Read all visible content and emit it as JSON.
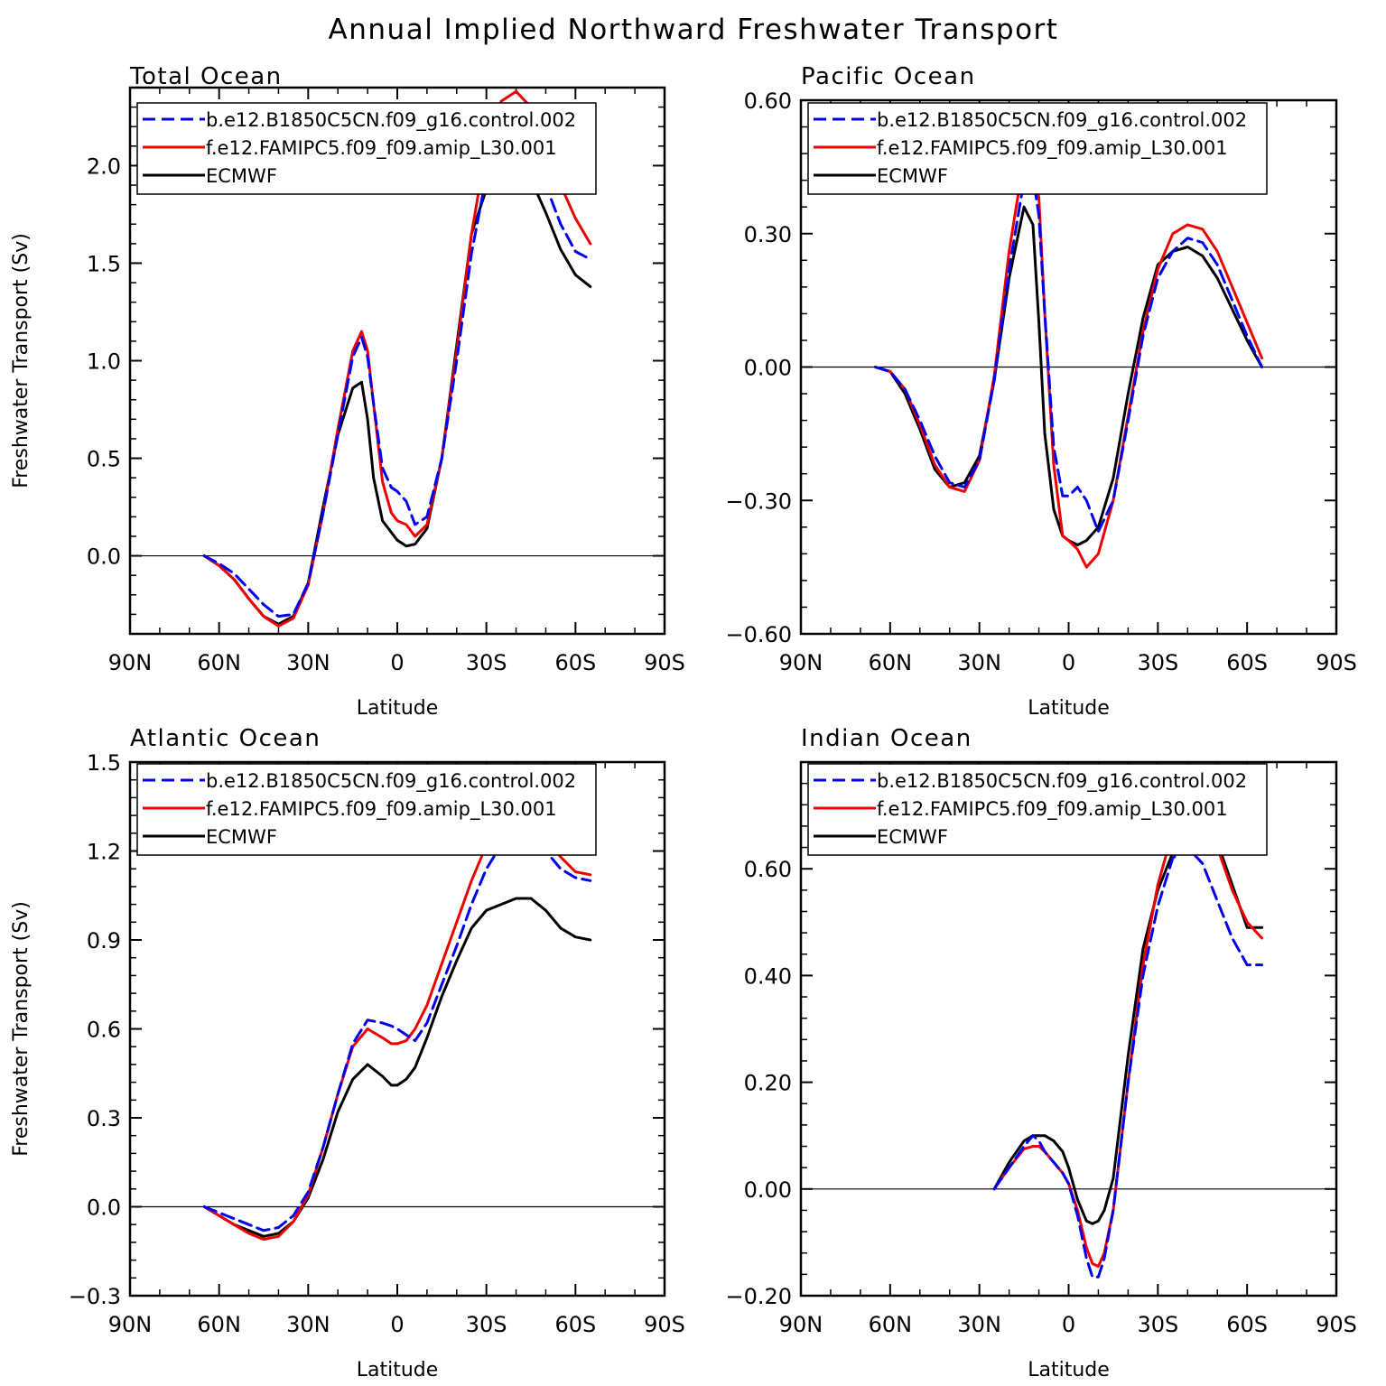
{
  "figure": {
    "title": "Annual Implied Northward Freshwater Transport"
  },
  "legend_entries": [
    "b.e12.B1850C5CN.f09_g16.control.002",
    "f.e12.FAMIPC5.f09_f09.amip_L30.001",
    "ECMWF"
  ],
  "colors": {
    "control": "#0000ee",
    "amip": "#ee0000",
    "ecmwf": "#000000"
  },
  "chart_data": [
    {
      "type": "line",
      "title": "Total Ocean",
      "xlabel": "Latitude",
      "ylabel": "Freshwater Transport (Sv)",
      "xlim": [
        90,
        -90
      ],
      "ylim": [
        -0.4,
        2.4
      ],
      "x_ticks": [
        90,
        60,
        30,
        0,
        -30,
        -60,
        -90
      ],
      "x_tick_labels": [
        "90N",
        "60N",
        "30N",
        "0",
        "30S",
        "60S",
        "90S"
      ],
      "y_ticks": [
        0.0,
        0.5,
        1.0,
        1.5,
        2.0
      ],
      "y_tick_labels": [
        "0.0",
        "0.5",
        "1.0",
        "1.5",
        "2.0"
      ],
      "legend_position": "top-left",
      "series": [
        {
          "name": "b.e12.B1850C5CN.f09_g16.control.002",
          "style": "dashed",
          "color": "#0000ee",
          "x": [
            65,
            60,
            55,
            50,
            45,
            40,
            35,
            30,
            25,
            20,
            15,
            12,
            10,
            8,
            5,
            2,
            0,
            -3,
            -6,
            -10,
            -15,
            -20,
            -25,
            -30,
            -35,
            -40,
            -45,
            -50,
            -55,
            -60,
            -65
          ],
          "y": [
            0.0,
            -0.04,
            -0.09,
            -0.17,
            -0.25,
            -0.31,
            -0.3,
            -0.14,
            0.22,
            0.62,
            1.02,
            1.12,
            1.02,
            0.78,
            0.45,
            0.35,
            0.33,
            0.28,
            0.16,
            0.2,
            0.5,
            1.0,
            1.55,
            1.95,
            2.15,
            2.2,
            2.1,
            1.9,
            1.7,
            1.56,
            1.52
          ]
        },
        {
          "name": "f.e12.FAMIPC5.f09_f09.amip_L30.001",
          "style": "solid",
          "color": "#ee0000",
          "x": [
            65,
            60,
            55,
            50,
            45,
            40,
            35,
            30,
            25,
            20,
            15,
            12,
            10,
            8,
            5,
            2,
            0,
            -3,
            -6,
            -10,
            -15,
            -20,
            -25,
            -30,
            -35,
            -40,
            -45,
            -50,
            -55,
            -60,
            -65
          ],
          "y": [
            0.0,
            -0.05,
            -0.12,
            -0.22,
            -0.31,
            -0.36,
            -0.32,
            -0.15,
            0.22,
            0.65,
            1.05,
            1.15,
            1.05,
            0.78,
            0.38,
            0.22,
            0.18,
            0.16,
            0.1,
            0.16,
            0.5,
            1.05,
            1.65,
            2.1,
            2.33,
            2.38,
            2.3,
            2.1,
            1.9,
            1.73,
            1.6
          ]
        },
        {
          "name": "ECMWF",
          "style": "solid",
          "color": "#000000",
          "x": [
            65,
            60,
            55,
            50,
            45,
            40,
            35,
            30,
            25,
            20,
            15,
            12,
            10,
            8,
            5,
            2,
            0,
            -3,
            -6,
            -10,
            -15,
            -20,
            -25,
            -30,
            -35,
            -40,
            -45,
            -50,
            -55,
            -60,
            -65
          ],
          "y": [
            0.0,
            -0.05,
            -0.12,
            -0.22,
            -0.31,
            -0.35,
            -0.31,
            -0.14,
            0.25,
            0.62,
            0.86,
            0.89,
            0.7,
            0.4,
            0.18,
            0.12,
            0.08,
            0.05,
            0.06,
            0.14,
            0.5,
            1.08,
            1.65,
            1.88,
            1.98,
            2.01,
            1.93,
            1.76,
            1.57,
            1.44,
            1.38
          ]
        }
      ]
    },
    {
      "type": "line",
      "title": "Pacific Ocean",
      "xlabel": "Latitude",
      "ylabel": "",
      "xlim": [
        90,
        -90
      ],
      "ylim": [
        -0.6,
        0.6
      ],
      "x_ticks": [
        90,
        60,
        30,
        0,
        -30,
        -60,
        -90
      ],
      "x_tick_labels": [
        "90N",
        "60N",
        "30N",
        "0",
        "30S",
        "60S",
        "90S"
      ],
      "y_ticks": [
        -0.6,
        -0.3,
        0.0,
        0.3,
        0.6
      ],
      "y_tick_labels": [
        "−0.60",
        "−0.30",
        "0.00",
        "0.30",
        "0.60"
      ],
      "legend_position": "top-left",
      "series": [
        {
          "name": "b.e12.B1850C5CN.f09_g16.control.002",
          "style": "dashed",
          "color": "#0000ee",
          "x": [
            65,
            60,
            55,
            50,
            45,
            40,
            35,
            30,
            25,
            20,
            15,
            12,
            10,
            8,
            5,
            2,
            0,
            -3,
            -6,
            -10,
            -15,
            -20,
            -25,
            -30,
            -35,
            -40,
            -45,
            -50,
            -55,
            -60,
            -65
          ],
          "y": [
            0.0,
            -0.01,
            -0.05,
            -0.12,
            -0.2,
            -0.26,
            -0.27,
            -0.21,
            -0.03,
            0.22,
            0.42,
            0.43,
            0.34,
            0.12,
            -0.18,
            -0.29,
            -0.29,
            -0.27,
            -0.3,
            -0.37,
            -0.3,
            -0.12,
            0.07,
            0.2,
            0.26,
            0.29,
            0.28,
            0.23,
            0.15,
            0.07,
            0.0
          ]
        },
        {
          "name": "f.e12.FAMIPC5.f09_f09.amip_L30.001",
          "style": "solid",
          "color": "#ee0000",
          "x": [
            65,
            60,
            55,
            50,
            45,
            40,
            35,
            30,
            25,
            20,
            15,
            12,
            10,
            8,
            5,
            2,
            0,
            -3,
            -6,
            -10,
            -15,
            -20,
            -25,
            -30,
            -35,
            -40,
            -45,
            -50,
            -55,
            -60,
            -65
          ],
          "y": [
            0.0,
            -0.01,
            -0.05,
            -0.13,
            -0.22,
            -0.27,
            -0.28,
            -0.21,
            -0.02,
            0.26,
            0.47,
            0.48,
            0.38,
            0.12,
            -0.22,
            -0.38,
            -0.39,
            -0.41,
            -0.45,
            -0.42,
            -0.3,
            -0.11,
            0.08,
            0.22,
            0.3,
            0.32,
            0.31,
            0.26,
            0.18,
            0.1,
            0.02
          ]
        },
        {
          "name": "ECMWF",
          "style": "solid",
          "color": "#000000",
          "x": [
            65,
            60,
            55,
            50,
            45,
            40,
            35,
            30,
            25,
            20,
            15,
            12,
            10,
            8,
            5,
            2,
            0,
            -3,
            -6,
            -10,
            -15,
            -20,
            -25,
            -30,
            -35,
            -40,
            -45,
            -50,
            -55,
            -60,
            -65
          ],
          "y": [
            0.0,
            -0.01,
            -0.06,
            -0.14,
            -0.23,
            -0.27,
            -0.26,
            -0.2,
            -0.03,
            0.2,
            0.36,
            0.32,
            0.1,
            -0.15,
            -0.32,
            -0.38,
            -0.39,
            -0.4,
            -0.39,
            -0.36,
            -0.25,
            -0.06,
            0.11,
            0.23,
            0.26,
            0.27,
            0.25,
            0.2,
            0.13,
            0.06,
            0.0
          ]
        }
      ]
    },
    {
      "type": "line",
      "title": "Atlantic Ocean",
      "xlabel": "Latitude",
      "ylabel": "Freshwater Transport (Sv)",
      "xlim": [
        90,
        -90
      ],
      "ylim": [
        -0.3,
        1.5
      ],
      "x_ticks": [
        90,
        60,
        30,
        0,
        -30,
        -60,
        -90
      ],
      "x_tick_labels": [
        "90N",
        "60N",
        "30N",
        "0",
        "30S",
        "60S",
        "90S"
      ],
      "y_ticks": [
        -0.3,
        0.0,
        0.3,
        0.6,
        0.9,
        1.2,
        1.5
      ],
      "y_tick_labels": [
        "−0.3",
        "0.0",
        "0.3",
        "0.6",
        "0.9",
        "1.2",
        "1.5"
      ],
      "legend_position": "top-left",
      "series": [
        {
          "name": "b.e12.B1850C5CN.f09_g16.control.002",
          "style": "dashed",
          "color": "#0000ee",
          "x": [
            65,
            60,
            55,
            50,
            45,
            40,
            35,
            30,
            25,
            20,
            15,
            10,
            5,
            2,
            0,
            -3,
            -6,
            -10,
            -15,
            -20,
            -25,
            -30,
            -35,
            -40,
            -45,
            -50,
            -55,
            -60,
            -65
          ],
          "y": [
            0.0,
            -0.02,
            -0.04,
            -0.06,
            -0.08,
            -0.07,
            -0.03,
            0.05,
            0.2,
            0.38,
            0.55,
            0.63,
            0.62,
            0.61,
            0.6,
            0.58,
            0.56,
            0.62,
            0.75,
            0.88,
            1.02,
            1.14,
            1.22,
            1.27,
            1.26,
            1.2,
            1.14,
            1.11,
            1.1
          ]
        },
        {
          "name": "f.e12.FAMIPC5.f09_f09.amip_L30.001",
          "style": "solid",
          "color": "#ee0000",
          "x": [
            65,
            60,
            55,
            50,
            45,
            40,
            35,
            30,
            25,
            20,
            15,
            10,
            5,
            2,
            0,
            -3,
            -6,
            -10,
            -15,
            -20,
            -25,
            -30,
            -35,
            -40,
            -45,
            -50,
            -55,
            -60,
            -65
          ],
          "y": [
            0.0,
            -0.03,
            -0.06,
            -0.09,
            -0.11,
            -0.1,
            -0.05,
            0.04,
            0.2,
            0.38,
            0.54,
            0.6,
            0.57,
            0.55,
            0.55,
            0.56,
            0.6,
            0.68,
            0.82,
            0.96,
            1.1,
            1.22,
            1.29,
            1.33,
            1.32,
            1.25,
            1.18,
            1.13,
            1.12
          ]
        },
        {
          "name": "ECMWF",
          "style": "solid",
          "color": "#000000",
          "x": [
            65,
            60,
            55,
            50,
            45,
            40,
            35,
            30,
            25,
            20,
            15,
            10,
            5,
            2,
            0,
            -3,
            -6,
            -10,
            -15,
            -20,
            -25,
            -30,
            -35,
            -40,
            -45,
            -50,
            -55,
            -60,
            -65
          ],
          "y": [
            0.0,
            -0.03,
            -0.06,
            -0.08,
            -0.1,
            -0.09,
            -0.05,
            0.03,
            0.16,
            0.32,
            0.43,
            0.48,
            0.44,
            0.41,
            0.41,
            0.43,
            0.47,
            0.57,
            0.71,
            0.83,
            0.94,
            1.0,
            1.02,
            1.04,
            1.04,
            1.0,
            0.94,
            0.91,
            0.9
          ]
        }
      ]
    },
    {
      "type": "line",
      "title": "Indian Ocean",
      "xlabel": "Latitude",
      "ylabel": "",
      "xlim": [
        90,
        -90
      ],
      "ylim": [
        -0.2,
        0.8
      ],
      "x_ticks": [
        90,
        60,
        30,
        0,
        -30,
        -60,
        -90
      ],
      "x_tick_labels": [
        "90N",
        "60N",
        "30N",
        "0",
        "30S",
        "60S",
        "90S"
      ],
      "y_ticks": [
        -0.2,
        0.0,
        0.2,
        0.4,
        0.6
      ],
      "y_tick_labels": [
        "−0.20",
        "0.00",
        "0.20",
        "0.40",
        "0.60"
      ],
      "legend_position": "top-left",
      "series": [
        {
          "name": "b.e12.B1850C5CN.f09_g16.control.002",
          "style": "dashed",
          "color": "#0000ee",
          "x": [
            25,
            20,
            15,
            12,
            10,
            8,
            5,
            2,
            0,
            -3,
            -6,
            -8,
            -10,
            -12,
            -15,
            -20,
            -25,
            -30,
            -35,
            -40,
            -45,
            -50,
            -55,
            -60,
            -65
          ],
          "y": [
            0.0,
            0.04,
            0.08,
            0.1,
            0.09,
            0.07,
            0.05,
            0.03,
            0.01,
            -0.05,
            -0.13,
            -0.165,
            -0.165,
            -0.13,
            -0.04,
            0.2,
            0.4,
            0.53,
            0.62,
            0.64,
            0.61,
            0.54,
            0.47,
            0.42,
            0.42
          ]
        },
        {
          "name": "f.e12.FAMIPC5.f09_f09.amip_L30.001",
          "style": "solid",
          "color": "#ee0000",
          "x": [
            25,
            20,
            15,
            12,
            10,
            8,
            5,
            2,
            0,
            -3,
            -6,
            -8,
            -10,
            -12,
            -15,
            -20,
            -25,
            -30,
            -35,
            -40,
            -45,
            -50,
            -55,
            -60,
            -65
          ],
          "y": [
            0.0,
            0.04,
            0.075,
            0.08,
            0.08,
            0.07,
            0.05,
            0.03,
            0.01,
            -0.04,
            -0.11,
            -0.14,
            -0.145,
            -0.12,
            -0.04,
            0.2,
            0.42,
            0.57,
            0.67,
            0.73,
            0.72,
            0.64,
            0.56,
            0.5,
            0.47
          ]
        },
        {
          "name": "ECMWF",
          "style": "solid",
          "color": "#000000",
          "x": [
            25,
            20,
            15,
            12,
            10,
            8,
            5,
            2,
            0,
            -3,
            -6,
            -8,
            -10,
            -12,
            -15,
            -20,
            -25,
            -30,
            -35,
            -40,
            -45,
            -50,
            -55,
            -60,
            -65
          ],
          "y": [
            0.0,
            0.05,
            0.09,
            0.1,
            0.1,
            0.1,
            0.09,
            0.07,
            0.04,
            -0.02,
            -0.06,
            -0.065,
            -0.06,
            -0.04,
            0.02,
            0.25,
            0.45,
            0.56,
            0.63,
            0.68,
            0.7,
            0.65,
            0.57,
            0.49,
            0.49
          ]
        }
      ]
    }
  ]
}
